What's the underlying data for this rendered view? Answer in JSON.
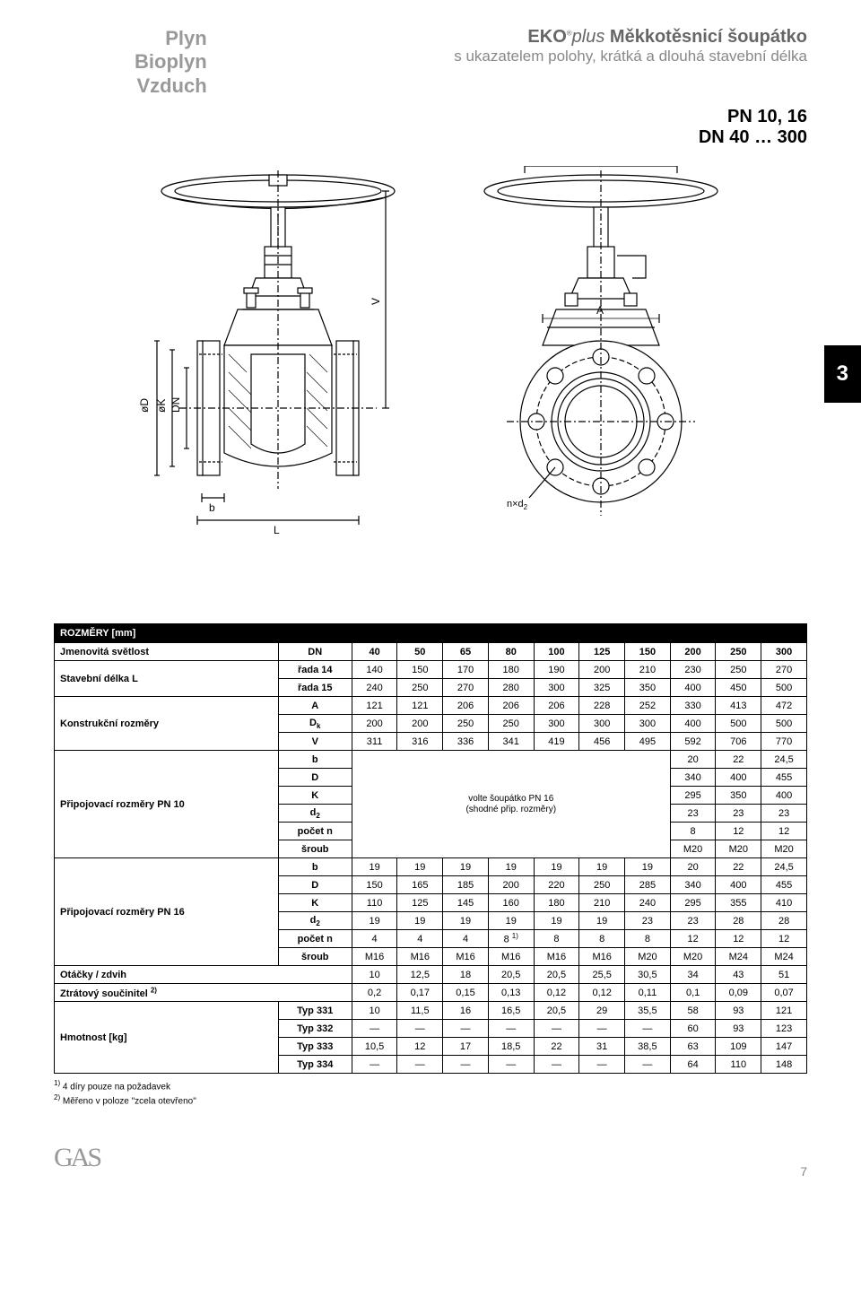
{
  "header": {
    "left_lines": [
      "Plyn",
      "Bioplyn",
      "Vzduch"
    ],
    "right_line1_brand": "EKO",
    "right_line1_reg": "®",
    "right_line1_italic": "plus",
    "right_line1_rest": " Měkkotěsnicí šoupátko",
    "right_line2": "s ukazatelem polohy, krátká a dlouhá stavební délka",
    "pn_line": "PN 10, 16",
    "dn_line": "DN 40 … 300",
    "section_badge": "3"
  },
  "diagram": {
    "labels": {
      "V": "V",
      "A": "A",
      "b": "b",
      "L": "L",
      "phiD": "øD",
      "phiK": "øK",
      "DN": "DN",
      "phiDk": "øD",
      "phiDk_sub": "k",
      "nxd2": "n×d",
      "nxd2_sub": "2"
    },
    "stroke": "#000000",
    "fill": "#ffffff",
    "hatch": "#000000"
  },
  "table": {
    "header_title": "ROZMĚRY [mm]",
    "rows": [
      {
        "label": "Jmenovitá světlost",
        "sub": "DN",
        "vals": [
          "40",
          "50",
          "65",
          "80",
          "100",
          "125",
          "150",
          "200",
          "250",
          "300"
        ],
        "bold": true
      },
      {
        "label": "Stavební délka L",
        "sub": "řada 14",
        "vals": [
          "140",
          "150",
          "170",
          "180",
          "190",
          "200",
          "210",
          "230",
          "250",
          "270"
        ]
      },
      {
        "label": "",
        "sub": "řada 15",
        "vals": [
          "240",
          "250",
          "270",
          "280",
          "300",
          "325",
          "350",
          "400",
          "450",
          "500"
        ]
      },
      {
        "label": "Konstrukční rozměry",
        "sub": "A",
        "vals": [
          "121",
          "121",
          "206",
          "206",
          "206",
          "228",
          "252",
          "330",
          "413",
          "472"
        ]
      },
      {
        "label": "",
        "sub": "Dk",
        "vals": [
          "200",
          "200",
          "250",
          "250",
          "300",
          "300",
          "300",
          "400",
          "500",
          "500"
        ],
        "sub_html": "D<sub>k</sub>"
      },
      {
        "label": "",
        "sub": "V",
        "vals": [
          "311",
          "316",
          "336",
          "341",
          "419",
          "456",
          "495",
          "592",
          "706",
          "770"
        ]
      }
    ],
    "pn10_label": "Připojovací rozměry PN 10",
    "pn10_rows": [
      {
        "sub": "b",
        "last3": [
          "20",
          "22",
          "24,5"
        ]
      },
      {
        "sub": "D",
        "last3": [
          "340",
          "400",
          "455"
        ]
      },
      {
        "sub": "K",
        "last3": [
          "295",
          "350",
          "400"
        ]
      },
      {
        "sub": "d2",
        "sub_html": "d<sub>2</sub>",
        "last3": [
          "23",
          "23",
          "23"
        ]
      },
      {
        "sub": "počet n",
        "last3": [
          "8",
          "12",
          "12"
        ]
      },
      {
        "sub": "šroub",
        "last3": [
          "M20",
          "M20",
          "M20"
        ]
      }
    ],
    "pn10_midnote_line1": "volte šoupátko PN 16",
    "pn10_midnote_line2": "(shodné přip. rozměry)",
    "pn16_label": "Připojovací rozměry PN 16",
    "pn16_rows": [
      {
        "sub": "b",
        "vals": [
          "19",
          "19",
          "19",
          "19",
          "19",
          "19",
          "19",
          "20",
          "22",
          "24,5"
        ]
      },
      {
        "sub": "D",
        "vals": [
          "150",
          "165",
          "185",
          "200",
          "220",
          "250",
          "285",
          "340",
          "400",
          "455"
        ]
      },
      {
        "sub": "K",
        "vals": [
          "110",
          "125",
          "145",
          "160",
          "180",
          "210",
          "240",
          "295",
          "355",
          "410"
        ]
      },
      {
        "sub": "d2",
        "sub_html": "d<sub>2</sub>",
        "vals": [
          "19",
          "19",
          "19",
          "19",
          "19",
          "19",
          "23",
          "23",
          "28",
          "28"
        ]
      },
      {
        "sub": "počet n",
        "vals": [
          "4",
          "4",
          "4",
          "8 <sup>1)</sup>",
          "8",
          "8",
          "8",
          "12",
          "12",
          "12"
        ]
      },
      {
        "sub": "šroub",
        "vals": [
          "M16",
          "M16",
          "M16",
          "M16",
          "M16",
          "M16",
          "M20",
          "M20",
          "M24",
          "M24"
        ]
      }
    ],
    "bottom_rows": [
      {
        "label": "Otáčky / zdvih",
        "sub": "",
        "vals": [
          "10",
          "12,5",
          "18",
          "20,5",
          "20,5",
          "25,5",
          "30,5",
          "34",
          "43",
          "51"
        ]
      },
      {
        "label": "Ztrátový součinitel <sup>2)</sup>",
        "sub": "",
        "vals": [
          "0,2",
          "0,17",
          "0,15",
          "0,13",
          "0,12",
          "0,12",
          "0,11",
          "0,1",
          "0,09",
          "0,07"
        ]
      },
      {
        "label": "Hmotnost [kg]",
        "sub": "Typ 331",
        "vals": [
          "10",
          "11,5",
          "16",
          "16,5",
          "20,5",
          "29",
          "35,5",
          "58",
          "93",
          "121"
        ]
      },
      {
        "label": "",
        "sub": "Typ 332",
        "vals": [
          "—",
          "—",
          "—",
          "—",
          "—",
          "—",
          "—",
          "60",
          "93",
          "123"
        ]
      },
      {
        "label": "",
        "sub": "Typ 333",
        "vals": [
          "10,5",
          "12",
          "17",
          "18,5",
          "22",
          "31",
          "38,5",
          "63",
          "109",
          "147"
        ]
      },
      {
        "label": "",
        "sub": "Typ 334",
        "vals": [
          "—",
          "—",
          "—",
          "—",
          "—",
          "—",
          "—",
          "64",
          "110",
          "148"
        ]
      }
    ]
  },
  "footnotes": [
    "<sup>1)</sup> 4 díry pouze na požadavek",
    "<sup>2)</sup> Měřeno v poloze \"zcela otevřeno\""
  ],
  "footer": {
    "page_number": "7"
  }
}
